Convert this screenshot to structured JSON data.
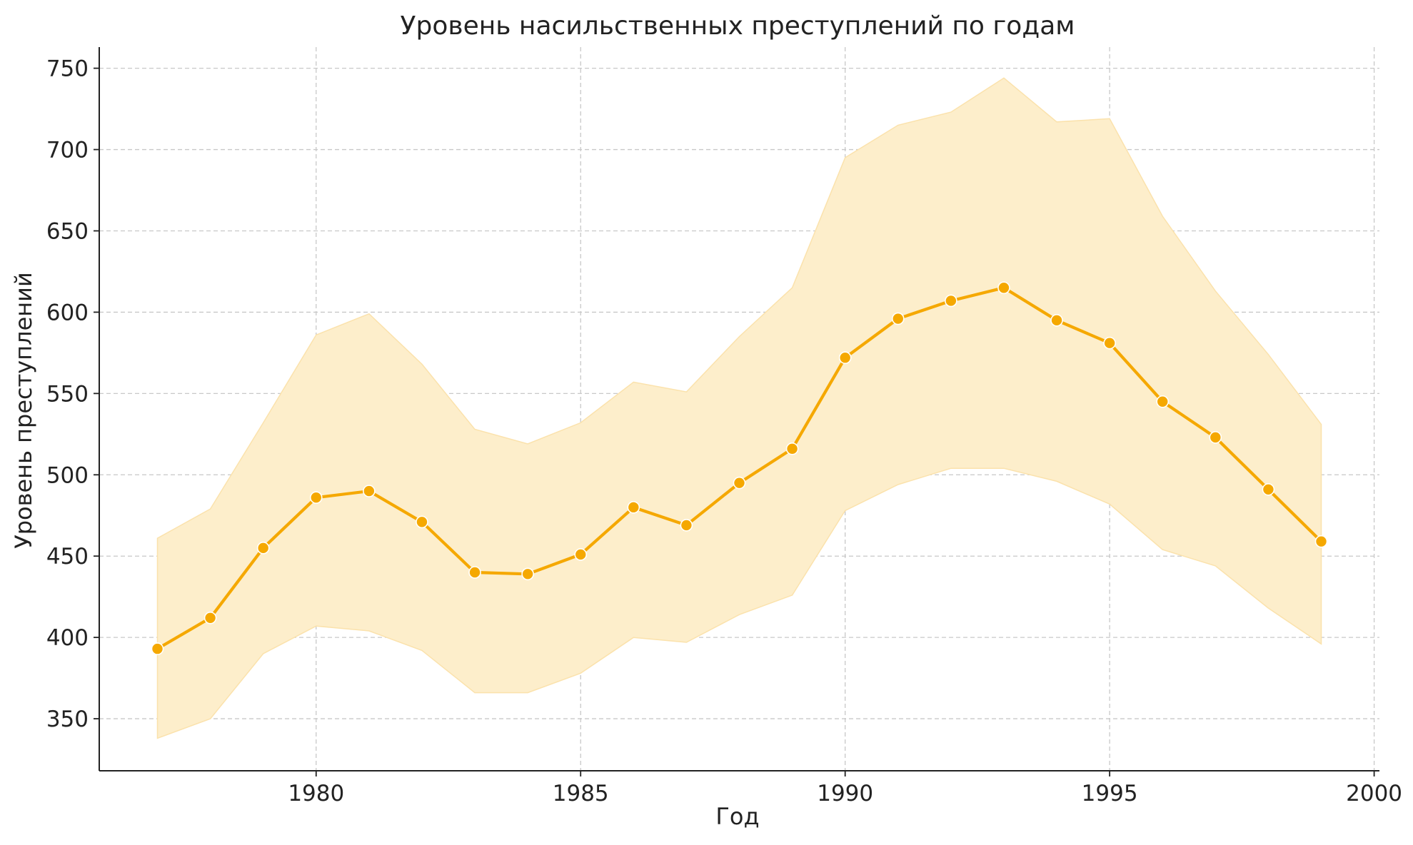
{
  "chart_data": {
    "type": "line",
    "title": "Уровень насильственных преступлений по годам",
    "xlabel": "Год",
    "ylabel": "Уровень преступлений",
    "xlim": [
      1975.9,
      2000.1
    ],
    "ylim": [
      318,
      763
    ],
    "x_ticks": [
      1980,
      1985,
      1990,
      1995,
      2000
    ],
    "y_ticks": [
      350,
      400,
      450,
      500,
      550,
      600,
      650,
      700,
      750
    ],
    "grid": true,
    "colors": {
      "line": "#f5a800",
      "band": "#fdeecb",
      "grid": "#c8c8c8",
      "axis": "#222222",
      "text": "#222222"
    },
    "x": [
      1977,
      1978,
      1979,
      1980,
      1981,
      1982,
      1983,
      1984,
      1985,
      1986,
      1987,
      1988,
      1989,
      1990,
      1991,
      1992,
      1993,
      1994,
      1995,
      1996,
      1997,
      1998,
      1999
    ],
    "series": [
      {
        "values": [
          393,
          412,
          455,
          486,
          490,
          471,
          440,
          439,
          451,
          480,
          469,
          495,
          516,
          572,
          596,
          607,
          615,
          595,
          581,
          545,
          523,
          491,
          459
        ],
        "lower": [
          338,
          350,
          390,
          407,
          404,
          392,
          366,
          366,
          378,
          400,
          397,
          414,
          426,
          478,
          494,
          504,
          504,
          496,
          482,
          454,
          444,
          418,
          396
        ],
        "upper": [
          461,
          479,
          532,
          586,
          599,
          568,
          528,
          519,
          532,
          557,
          551,
          585,
          615,
          695,
          715,
          723,
          744,
          717,
          719,
          659,
          613,
          574,
          531
        ]
      }
    ]
  }
}
